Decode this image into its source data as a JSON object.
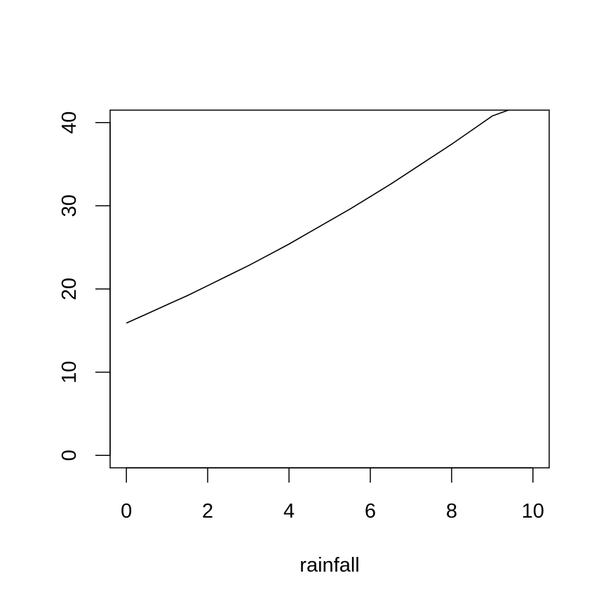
{
  "chart_data": {
    "type": "line",
    "title": "",
    "xlabel": "rainfall",
    "ylabel": "",
    "xlim": [
      -0.4,
      10.4
    ],
    "ylim": [
      -1.5,
      41.5
    ],
    "x_ticks": [
      0,
      2,
      4,
      6,
      8,
      10
    ],
    "y_ticks": [
      0,
      10,
      20,
      30,
      40
    ],
    "grid": false,
    "series": [
      {
        "color": "#000000",
        "x": [
          0,
          0.5,
          1,
          1.5,
          2,
          2.5,
          3,
          3.5,
          4,
          4.5,
          5,
          5.5,
          6,
          6.5,
          7,
          7.5,
          8,
          8.5,
          9,
          9.4
        ],
        "y": [
          15.9,
          17.0,
          18.1,
          19.2,
          20.4,
          21.6,
          22.8,
          24.1,
          25.4,
          26.8,
          28.2,
          29.6,
          31.1,
          32.6,
          34.2,
          35.8,
          37.4,
          39.1,
          40.8,
          41.5
        ]
      }
    ]
  }
}
